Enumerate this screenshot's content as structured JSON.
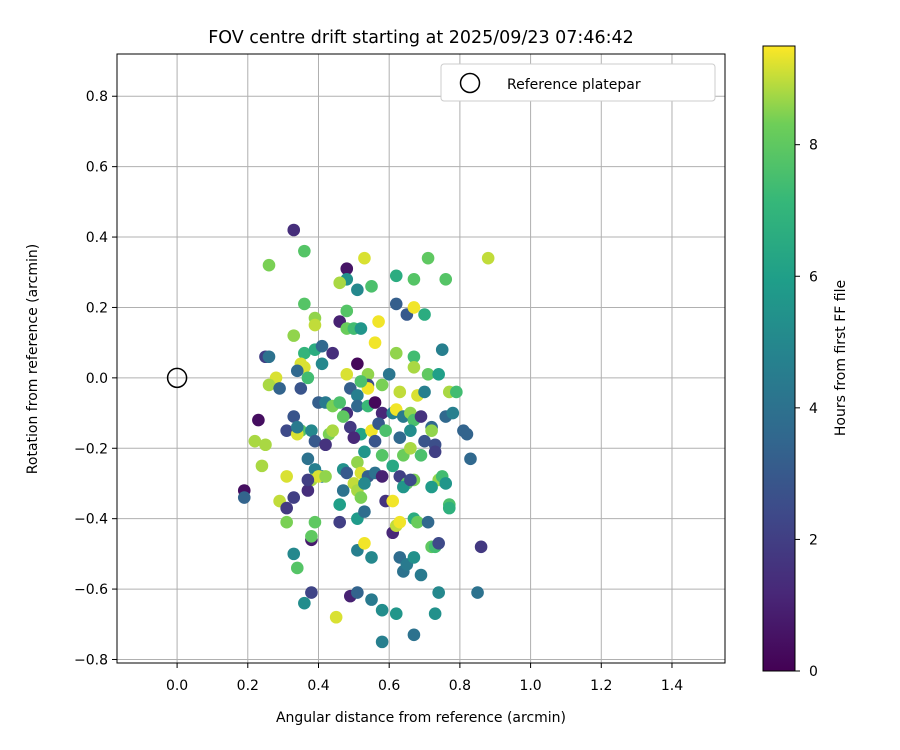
{
  "chart_data": {
    "type": "scatter",
    "title": "FOV centre drift starting at 2025/09/23 07:46:42",
    "xlabel": "Angular distance from reference (arcmin)",
    "ylabel": "Rotation from reference (arcmin)",
    "xlim": [
      -0.17,
      1.55
    ],
    "ylim": [
      -0.81,
      0.92
    ],
    "xticks": [
      "0.0",
      "0.2",
      "0.4",
      "0.6",
      "0.8",
      "1.0",
      "1.2",
      "1.4"
    ],
    "xtick_values": [
      0.0,
      0.2,
      0.4,
      0.6,
      0.8,
      1.0,
      1.2,
      1.4
    ],
    "yticks": [
      "−0.8",
      "−0.6",
      "−0.4",
      "−0.2",
      "0.0",
      "0.2",
      "0.4",
      "0.6",
      "0.8"
    ],
    "ytick_values": [
      -0.8,
      -0.6,
      -0.4,
      -0.2,
      0.0,
      0.2,
      0.4,
      0.6,
      0.8
    ],
    "grid": true,
    "legend": {
      "label": "Reference platepar",
      "location": "top-right"
    },
    "reference_point": {
      "x": 0.0,
      "y": 0.0
    },
    "colorbar": {
      "label": "Hours from first FF file",
      "colormap": "viridis",
      "range": [
        0,
        9.5
      ],
      "ticks": [
        "0",
        "2",
        "4",
        "6",
        "8"
      ],
      "tick_values": [
        0,
        2,
        4,
        6,
        8
      ]
    },
    "points": [
      [
        0.33,
        0.42,
        1.4
      ],
      [
        0.36,
        0.36,
        7.8
      ],
      [
        0.26,
        0.32,
        8.4
      ],
      [
        0.48,
        0.31,
        0.6
      ],
      [
        0.53,
        0.34,
        9.2
      ],
      [
        0.48,
        0.28,
        5.4
      ],
      [
        0.46,
        0.27,
        8.8
      ],
      [
        0.51,
        0.25,
        5.0
      ],
      [
        0.55,
        0.26,
        7.6
      ],
      [
        0.62,
        0.29,
        6.6
      ],
      [
        0.67,
        0.28,
        7.8
      ],
      [
        0.71,
        0.34,
        8.0
      ],
      [
        0.76,
        0.28,
        7.8
      ],
      [
        0.88,
        0.34,
        9.0
      ],
      [
        0.36,
        0.21,
        7.8
      ],
      [
        0.62,
        0.21,
        3.2
      ],
      [
        0.65,
        0.18,
        3.0
      ],
      [
        0.67,
        0.2,
        9.4
      ],
      [
        0.7,
        0.18,
        6.6
      ],
      [
        0.39,
        0.17,
        8.6
      ],
      [
        0.39,
        0.15,
        9.0
      ],
      [
        0.46,
        0.16,
        1.0
      ],
      [
        0.48,
        0.19,
        7.8
      ],
      [
        0.48,
        0.14,
        8.2
      ],
      [
        0.5,
        0.14,
        7.4
      ],
      [
        0.52,
        0.14,
        5.6
      ],
      [
        0.57,
        0.16,
        9.4
      ],
      [
        0.33,
        0.12,
        8.6
      ],
      [
        0.36,
        0.07,
        7.0
      ],
      [
        0.39,
        0.08,
        6.6
      ],
      [
        0.41,
        0.09,
        3.6
      ],
      [
        0.44,
        0.07,
        1.4
      ],
      [
        0.56,
        0.1,
        9.4
      ],
      [
        0.62,
        0.07,
        8.6
      ],
      [
        0.67,
        0.06,
        7.4
      ],
      [
        0.75,
        0.08,
        4.6
      ],
      [
        0.25,
        0.06,
        2.0
      ],
      [
        0.26,
        0.06,
        4.0
      ],
      [
        0.35,
        0.04,
        9.2
      ],
      [
        0.36,
        0.03,
        9.2
      ],
      [
        0.41,
        0.04,
        5.0
      ],
      [
        0.48,
        0.01,
        9.2
      ],
      [
        0.51,
        0.04,
        0.2
      ],
      [
        0.54,
        0.01,
        8.6
      ],
      [
        0.6,
        0.01,
        4.2
      ],
      [
        0.67,
        0.03,
        8.8
      ],
      [
        0.71,
        0.01,
        8.0
      ],
      [
        0.74,
        0.01,
        6.0
      ],
      [
        0.28,
        0.0,
        9.2
      ],
      [
        0.34,
        0.02,
        3.6
      ],
      [
        0.37,
        0.0,
        7.4
      ],
      [
        0.26,
        -0.02,
        8.8
      ],
      [
        0.29,
        -0.03,
        3.4
      ],
      [
        0.35,
        -0.03,
        2.8
      ],
      [
        0.49,
        -0.03,
        3.2
      ],
      [
        0.51,
        -0.05,
        4.6
      ],
      [
        0.54,
        -0.02,
        2.6
      ],
      [
        0.54,
        -0.03,
        9.4
      ],
      [
        0.52,
        -0.01,
        7.6
      ],
      [
        0.58,
        -0.02,
        8.4
      ],
      [
        0.63,
        -0.04,
        9.0
      ],
      [
        0.68,
        -0.05,
        9.2
      ],
      [
        0.7,
        -0.04,
        4.6
      ],
      [
        0.77,
        -0.04,
        8.8
      ],
      [
        0.79,
        -0.04,
        7.4
      ],
      [
        0.4,
        -0.07,
        3.2
      ],
      [
        0.42,
        -0.07,
        4.4
      ],
      [
        0.44,
        -0.08,
        8.4
      ],
      [
        0.46,
        -0.07,
        7.6
      ],
      [
        0.48,
        -0.1,
        1.4
      ],
      [
        0.51,
        -0.08,
        3.6
      ],
      [
        0.54,
        -0.08,
        7.2
      ],
      [
        0.56,
        -0.07,
        0.2
      ],
      [
        0.58,
        -0.1,
        1.2
      ],
      [
        0.61,
        -0.1,
        4.8
      ],
      [
        0.62,
        -0.09,
        9.4
      ],
      [
        0.64,
        -0.11,
        4.4
      ],
      [
        0.66,
        -0.1,
        8.6
      ],
      [
        0.67,
        -0.12,
        7.6
      ],
      [
        0.69,
        -0.11,
        1.6
      ],
      [
        0.72,
        -0.14,
        3.6
      ],
      [
        0.76,
        -0.11,
        3.6
      ],
      [
        0.78,
        -0.1,
        4.6
      ],
      [
        0.23,
        -0.12,
        0.4
      ],
      [
        0.33,
        -0.11,
        2.8
      ],
      [
        0.35,
        -0.15,
        7.8
      ],
      [
        0.38,
        -0.15,
        5.0
      ],
      [
        0.43,
        -0.16,
        8.4
      ],
      [
        0.44,
        -0.15,
        8.8
      ],
      [
        0.47,
        -0.11,
        8.0
      ],
      [
        0.49,
        -0.14,
        1.8
      ],
      [
        0.52,
        -0.16,
        6.2
      ],
      [
        0.55,
        -0.15,
        9.4
      ],
      [
        0.57,
        -0.13,
        3.0
      ],
      [
        0.59,
        -0.15,
        7.6
      ],
      [
        0.63,
        -0.17,
        3.6
      ],
      [
        0.66,
        -0.15,
        5.2
      ],
      [
        0.7,
        -0.18,
        2.8
      ],
      [
        0.72,
        -0.15,
        8.6
      ],
      [
        0.73,
        -0.19,
        2.6
      ],
      [
        0.81,
        -0.15,
        3.4
      ],
      [
        0.82,
        -0.16,
        3.4
      ],
      [
        0.22,
        -0.18,
        8.8
      ],
      [
        0.25,
        -0.19,
        8.8
      ],
      [
        0.31,
        -0.15,
        2.4
      ],
      [
        0.34,
        -0.16,
        9.2
      ],
      [
        0.34,
        -0.14,
        4.4
      ],
      [
        0.39,
        -0.18,
        3.0
      ],
      [
        0.42,
        -0.19,
        1.6
      ],
      [
        0.5,
        -0.17,
        1.2
      ],
      [
        0.53,
        -0.21,
        5.6
      ],
      [
        0.56,
        -0.18,
        2.8
      ],
      [
        0.64,
        -0.22,
        8.2
      ],
      [
        0.66,
        -0.2,
        8.8
      ],
      [
        0.69,
        -0.22,
        7.6
      ],
      [
        0.73,
        -0.21,
        2.0
      ],
      [
        0.83,
        -0.23,
        3.6
      ],
      [
        0.24,
        -0.25,
        8.8
      ],
      [
        0.37,
        -0.23,
        4.0
      ],
      [
        0.39,
        -0.26,
        4.6
      ],
      [
        0.41,
        -0.28,
        4.6
      ],
      [
        0.38,
        -0.29,
        8.8
      ],
      [
        0.4,
        -0.28,
        9.2
      ],
      [
        0.42,
        -0.28,
        8.6
      ],
      [
        0.47,
        -0.26,
        5.4
      ],
      [
        0.48,
        -0.27,
        3.0
      ],
      [
        0.51,
        -0.24,
        8.6
      ],
      [
        0.52,
        -0.27,
        9.2
      ],
      [
        0.54,
        -0.28,
        3.2
      ],
      [
        0.56,
        -0.27,
        4.0
      ],
      [
        0.58,
        -0.22,
        7.8
      ],
      [
        0.58,
        -0.28,
        1.0
      ],
      [
        0.61,
        -0.25,
        6.4
      ],
      [
        0.63,
        -0.28,
        2.0
      ],
      [
        0.65,
        -0.3,
        8.0
      ],
      [
        0.67,
        -0.29,
        8.4
      ],
      [
        0.74,
        -0.29,
        8.6
      ],
      [
        0.75,
        -0.28,
        7.4
      ],
      [
        0.76,
        -0.3,
        5.6
      ],
      [
        0.29,
        -0.35,
        9.0
      ],
      [
        0.31,
        -0.28,
        9.2
      ],
      [
        0.31,
        -0.37,
        1.8
      ],
      [
        0.33,
        -0.34,
        2.0
      ],
      [
        0.37,
        -0.32,
        1.4
      ],
      [
        0.37,
        -0.29,
        2.0
      ],
      [
        0.47,
        -0.32,
        4.0
      ],
      [
        0.5,
        -0.3,
        9.0
      ],
      [
        0.51,
        -0.32,
        8.8
      ],
      [
        0.52,
        -0.34,
        8.4
      ],
      [
        0.53,
        -0.3,
        5.0
      ],
      [
        0.59,
        -0.35,
        1.6
      ],
      [
        0.61,
        -0.35,
        9.4
      ],
      [
        0.64,
        -0.31,
        5.6
      ],
      [
        0.66,
        -0.29,
        2.4
      ],
      [
        0.72,
        -0.31,
        5.8
      ],
      [
        0.77,
        -0.36,
        7.6
      ],
      [
        0.77,
        -0.37,
        6.8
      ],
      [
        0.19,
        -0.32,
        0.4
      ],
      [
        0.19,
        -0.34,
        3.4
      ],
      [
        0.31,
        -0.41,
        8.4
      ],
      [
        0.38,
        -0.46,
        0.8
      ],
      [
        0.38,
        -0.45,
        8.0
      ],
      [
        0.39,
        -0.41,
        8.0
      ],
      [
        0.46,
        -0.36,
        6.0
      ],
      [
        0.46,
        -0.41,
        2.0
      ],
      [
        0.51,
        -0.4,
        5.8
      ],
      [
        0.53,
        -0.38,
        3.8
      ],
      [
        0.61,
        -0.44,
        1.2
      ],
      [
        0.62,
        -0.42,
        9.0
      ],
      [
        0.63,
        -0.41,
        9.4
      ],
      [
        0.67,
        -0.4,
        6.6
      ],
      [
        0.68,
        -0.41,
        8.2
      ],
      [
        0.71,
        -0.41,
        3.6
      ],
      [
        0.72,
        -0.48,
        8.0
      ],
      [
        0.73,
        -0.48,
        7.4
      ],
      [
        0.74,
        -0.47,
        2.4
      ],
      [
        0.86,
        -0.48,
        1.8
      ],
      [
        0.33,
        -0.5,
        5.0
      ],
      [
        0.34,
        -0.54,
        7.8
      ],
      [
        0.51,
        -0.49,
        4.6
      ],
      [
        0.53,
        -0.47,
        9.4
      ],
      [
        0.55,
        -0.51,
        5.0
      ],
      [
        0.63,
        -0.51,
        3.8
      ],
      [
        0.64,
        -0.55,
        4.0
      ],
      [
        0.65,
        -0.53,
        4.4
      ],
      [
        0.67,
        -0.51,
        5.4
      ],
      [
        0.69,
        -0.56,
        4.4
      ],
      [
        0.36,
        -0.64,
        5.2
      ],
      [
        0.38,
        -0.61,
        2.2
      ],
      [
        0.49,
        -0.62,
        1.0
      ],
      [
        0.51,
        -0.61,
        3.4
      ],
      [
        0.55,
        -0.63,
        4.4
      ],
      [
        0.58,
        -0.66,
        5.2
      ],
      [
        0.62,
        -0.67,
        5.6
      ],
      [
        0.73,
        -0.67,
        5.4
      ],
      [
        0.74,
        -0.61,
        5.0
      ],
      [
        0.85,
        -0.61,
        4.0
      ],
      [
        0.45,
        -0.68,
        9.2
      ],
      [
        0.58,
        -0.75,
        4.6
      ],
      [
        0.67,
        -0.73,
        4.0
      ]
    ]
  }
}
